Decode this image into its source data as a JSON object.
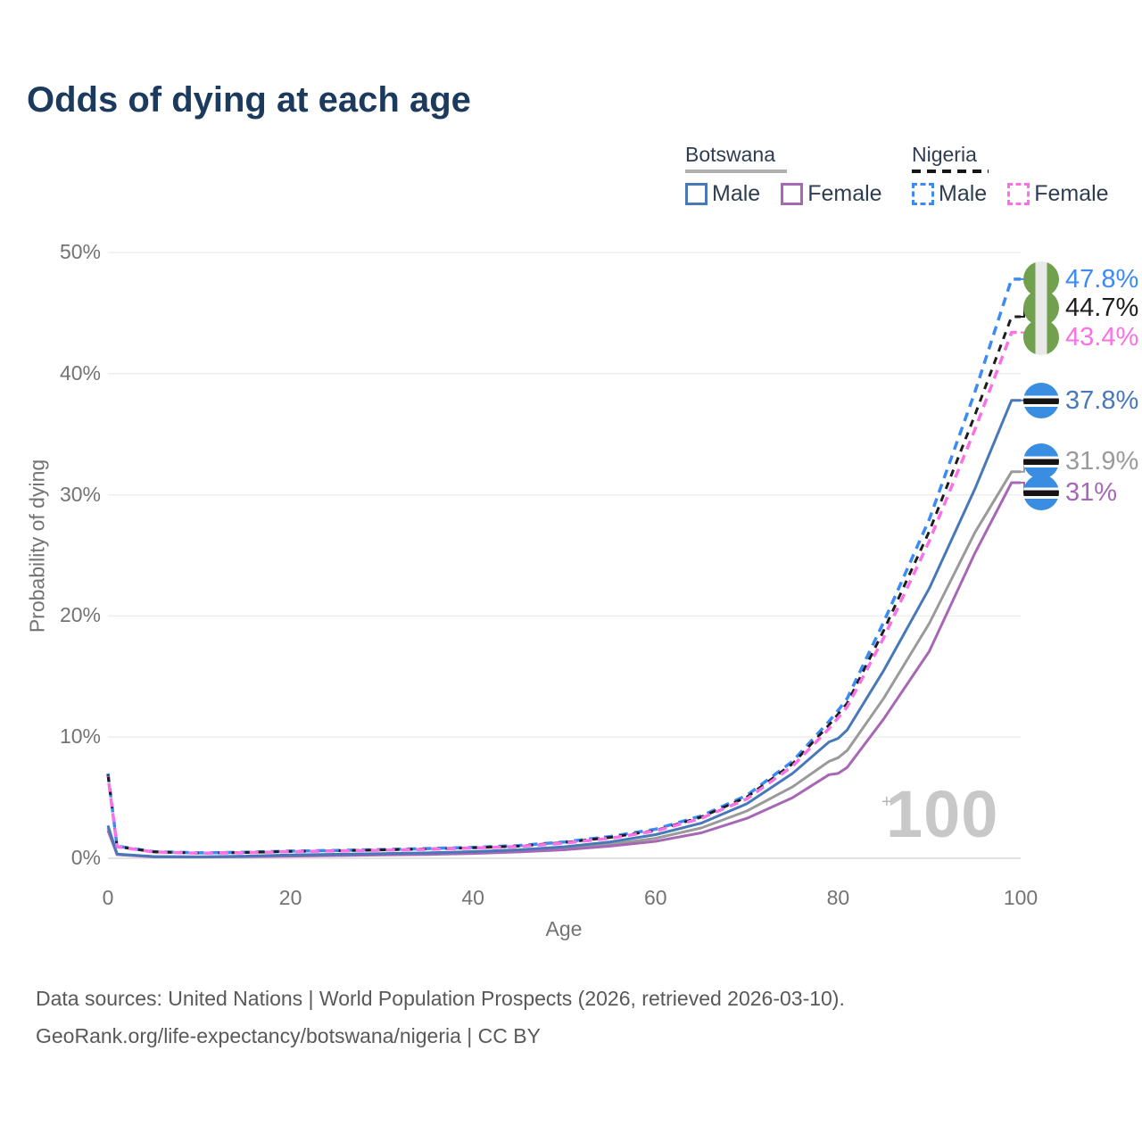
{
  "title": "Odds of dying at each age",
  "watermark": "100",
  "cursor_glyph": "+",
  "colors": {
    "title": "#1c3a5e",
    "axis_text": "#737373",
    "gridline": "#ededed",
    "baseline": "#d9d9d9",
    "watermark": "#c8c8c8",
    "footer_text": "#595959",
    "legend_text": "#2e3d51",
    "botswana_header_underline": "#b0b0b0",
    "nigeria_header_underline": "#151515"
  },
  "flags": {
    "nigeria": {
      "green": "#71a04e",
      "white": "#e9e9e9"
    },
    "botswana": {
      "blue": "#3a8ee2",
      "black": "#141414",
      "white": "#ffffff"
    }
  },
  "legend": {
    "groups": [
      {
        "name": "Botswana",
        "line_style": "solid",
        "items": [
          {
            "label": "Male",
            "color": "#4878b8",
            "dashed": false
          },
          {
            "label": "Female",
            "color": "#a667b4",
            "dashed": false
          }
        ]
      },
      {
        "name": "Nigeria",
        "line_style": "dashed",
        "items": [
          {
            "label": "Male",
            "color": "#3c8af5",
            "dashed": true
          },
          {
            "label": "Female",
            "color": "#fa70e5",
            "dashed": true
          }
        ]
      }
    ]
  },
  "chart_data": {
    "type": "line",
    "title": "Odds of dying at each age",
    "xlabel": "Age",
    "ylabel": "Probability of dying",
    "xlim": [
      0,
      100
    ],
    "ylim": [
      0,
      50
    ],
    "grid": "horizontal-only",
    "legend_position": "top-right",
    "x_ticks": [
      0,
      20,
      40,
      60,
      80,
      100
    ],
    "y_ticks": [
      {
        "label": "0%",
        "value": 0
      },
      {
        "label": "10%",
        "value": 10
      },
      {
        "label": "20%",
        "value": 20
      },
      {
        "label": "30%",
        "value": 30
      },
      {
        "label": "40%",
        "value": 40
      },
      {
        "label": "50%",
        "value": 50
      }
    ],
    "ages": [
      0,
      1,
      5,
      10,
      15,
      20,
      25,
      30,
      35,
      40,
      45,
      50,
      55,
      60,
      65,
      70,
      75,
      79,
      80,
      81,
      85,
      90,
      95,
      99,
      100
    ],
    "series": [
      {
        "name": "Botswana Total",
        "country": "Botswana",
        "sex": "Both",
        "color": "#9a9a9a",
        "label_color": "#9a9a9a",
        "dash": null,
        "width": 3,
        "flag": "botswana",
        "end_label": "31.9%",
        "label_dy": -12,
        "values": [
          2.5,
          0.32,
          0.13,
          0.11,
          0.15,
          0.23,
          0.27,
          0.32,
          0.38,
          0.47,
          0.6,
          0.82,
          1.15,
          1.65,
          2.5,
          3.9,
          5.9,
          8.0,
          8.3,
          8.9,
          13.2,
          19.4,
          26.9,
          31.9,
          31.9
        ]
      },
      {
        "name": "Botswana Female",
        "country": "Botswana",
        "sex": "Female",
        "color": "#a667b4",
        "label_color": "#a667b4",
        "dash": null,
        "width": 3,
        "flag": "botswana",
        "end_label": "31%",
        "label_dy": 11,
        "values": [
          2.3,
          0.3,
          0.12,
          0.1,
          0.13,
          0.18,
          0.22,
          0.27,
          0.32,
          0.4,
          0.52,
          0.7,
          1.0,
          1.4,
          2.1,
          3.3,
          5.0,
          6.9,
          7.0,
          7.5,
          11.5,
          17.1,
          25.2,
          31.0,
          31.0
        ]
      },
      {
        "name": "Botswana Male",
        "country": "Botswana",
        "sex": "Male",
        "color": "#4878b8",
        "label_color": "#4878b8",
        "dash": null,
        "width": 3,
        "flag": "botswana",
        "end_label": "37.8%",
        "label_dy": 0,
        "values": [
          2.7,
          0.35,
          0.15,
          0.12,
          0.18,
          0.28,
          0.33,
          0.38,
          0.45,
          0.55,
          0.7,
          0.95,
          1.35,
          1.95,
          2.9,
          4.5,
          7.0,
          9.6,
          9.9,
          10.6,
          15.5,
          22.3,
          30.5,
          37.8,
          37.8
        ]
      },
      {
        "name": "Nigeria Male",
        "country": "Nigeria",
        "sex": "Male",
        "color": "#3c8af5",
        "label_color": "#3c8af5",
        "dash": "10 7",
        "width": 3.5,
        "flag": "nigeria",
        "end_label": "47.8%",
        "label_dy": 0,
        "values": [
          7.0,
          1.0,
          0.55,
          0.45,
          0.5,
          0.6,
          0.65,
          0.72,
          0.8,
          0.9,
          1.05,
          1.35,
          1.8,
          2.4,
          3.5,
          5.2,
          8.0,
          11.3,
          12.2,
          13.2,
          19.5,
          28.0,
          38.5,
          47.8,
          47.8
        ]
      },
      {
        "name": "Nigeria Total",
        "country": "Nigeria",
        "sex": "Both",
        "color": "#1d1d1d",
        "label_color": "#1d1d1d",
        "dash": "8 7",
        "width": 3,
        "flag": "nigeria",
        "end_label": "44.7%",
        "label_dy": -10,
        "values": [
          6.9,
          0.97,
          0.53,
          0.43,
          0.48,
          0.57,
          0.62,
          0.69,
          0.77,
          0.87,
          1.0,
          1.3,
          1.72,
          2.3,
          3.4,
          5.05,
          7.8,
          11.0,
          11.9,
          12.8,
          18.8,
          27.0,
          36.6,
          44.7,
          44.7
        ]
      },
      {
        "name": "Nigeria Female",
        "country": "Nigeria",
        "sex": "Female",
        "color": "#fa70e5",
        "label_color": "#fa70e5",
        "dash": "10 7",
        "dash_offset": 9,
        "width": 3.5,
        "flag": "nigeria",
        "end_label": "43.4%",
        "label_dy": 5,
        "values": [
          6.8,
          0.95,
          0.52,
          0.42,
          0.46,
          0.55,
          0.6,
          0.66,
          0.74,
          0.85,
          0.97,
          1.25,
          1.65,
          2.25,
          3.3,
          4.9,
          7.6,
          10.7,
          11.6,
          12.5,
          18.2,
          26.2,
          35.4,
          43.4,
          43.4
        ]
      }
    ]
  },
  "footer": {
    "line1": "Data sources: United Nations | World Population Prospects (2026, retrieved 2026-03-10).",
    "line2": "GeoRank.org/life-expectancy/botswana/nigeria | CC BY"
  }
}
